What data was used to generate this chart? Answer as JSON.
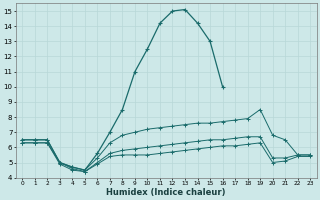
{
  "background_color": "#cde8e8",
  "grid_color": "#b8d8d8",
  "line_color": "#1a6b6b",
  "xlabel": "Humidex (Indice chaleur)",
  "xlim": [
    -0.5,
    23.5
  ],
  "ylim": [
    4,
    15.5
  ],
  "xticks": [
    0,
    1,
    2,
    3,
    4,
    5,
    6,
    7,
    8,
    9,
    10,
    11,
    12,
    13,
    14,
    15,
    16,
    17,
    18,
    19,
    20,
    21,
    22,
    23
  ],
  "yticks": [
    4,
    5,
    6,
    7,
    8,
    9,
    10,
    11,
    12,
    13,
    14,
    15
  ],
  "curve1": {
    "x": [
      0,
      1,
      2,
      3,
      4,
      5,
      6,
      7,
      8,
      9,
      10,
      11,
      12,
      13,
      14,
      15,
      16
    ],
    "y": [
      6.5,
      6.5,
      6.5,
      5.0,
      4.7,
      4.5,
      5.6,
      7.0,
      8.5,
      11.0,
      12.5,
      14.2,
      15.0,
      15.1,
      14.2,
      13.0,
      10.0
    ]
  },
  "curve2": {
    "x": [
      0,
      1,
      2,
      3,
      4,
      5,
      6,
      7,
      8,
      9,
      10,
      11,
      12,
      13,
      14,
      15,
      16,
      17,
      18,
      19,
      20,
      21,
      22,
      23
    ],
    "y": [
      6.5,
      6.5,
      6.5,
      5.0,
      4.7,
      4.5,
      5.3,
      6.3,
      6.8,
      7.0,
      7.2,
      7.3,
      7.4,
      7.5,
      7.6,
      7.6,
      7.7,
      7.8,
      7.9,
      8.5,
      6.8,
      6.5,
      5.5,
      5.5
    ]
  },
  "curve3": {
    "x": [
      0,
      1,
      2,
      3,
      4,
      5,
      6,
      7,
      8,
      9,
      10,
      11,
      12,
      13,
      14,
      15,
      16,
      17,
      18,
      19,
      20,
      21,
      22,
      23
    ],
    "y": [
      6.3,
      6.3,
      6.3,
      5.0,
      4.6,
      4.4,
      5.0,
      5.6,
      5.8,
      5.9,
      6.0,
      6.1,
      6.2,
      6.3,
      6.4,
      6.5,
      6.5,
      6.6,
      6.7,
      6.7,
      5.3,
      5.3,
      5.5,
      5.5
    ]
  },
  "curve4": {
    "x": [
      0,
      1,
      2,
      3,
      4,
      5,
      6,
      7,
      8,
      9,
      10,
      11,
      12,
      13,
      14,
      15,
      16,
      17,
      18,
      19,
      20,
      21,
      22,
      23
    ],
    "y": [
      6.3,
      6.3,
      6.3,
      4.9,
      4.5,
      4.4,
      4.9,
      5.4,
      5.5,
      5.5,
      5.5,
      5.6,
      5.7,
      5.8,
      5.9,
      6.0,
      6.1,
      6.1,
      6.2,
      6.3,
      5.0,
      5.1,
      5.4,
      5.4
    ]
  }
}
